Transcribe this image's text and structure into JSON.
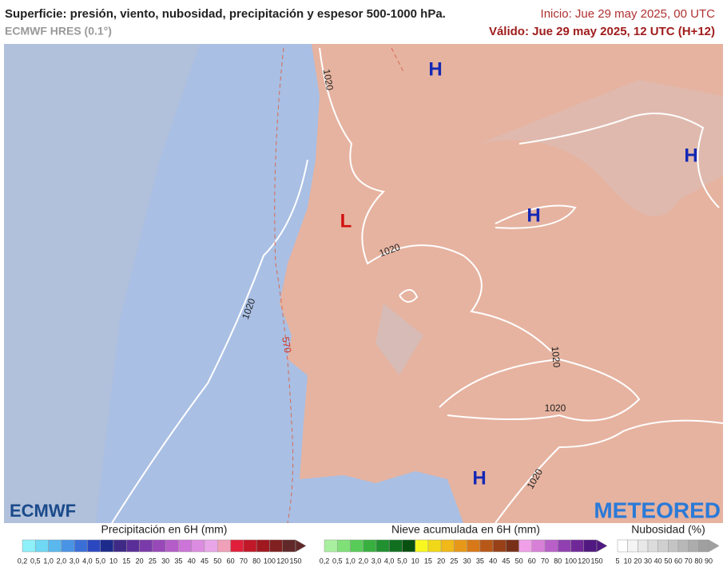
{
  "header": {
    "title": "Superficie: presión, viento, nubosidad, precipitación y espesor 500-1000 hPa.",
    "model": "ECMWF HRES (0.1°)",
    "init": "Inicio: Jue 29 may 2025, 00 UTC",
    "valid": "Válido: Jue 29 may 2025, 12 UTC (H+12)"
  },
  "map": {
    "pressure_centers": [
      "H",
      "H",
      "H",
      "H",
      "L"
    ],
    "isobar_labels": [
      "1020",
      "1020",
      "1020",
      "1020",
      "1020",
      "1020"
    ],
    "thickness_label": "570"
  },
  "logos": {
    "left": "ECMWF",
    "right": "METEORED"
  },
  "legends": [
    {
      "title": "Precipitación en 6H (mm)",
      "labels": [
        "0,2",
        "0,5",
        "1,0",
        "2,0",
        "3,0",
        "4,0",
        "5,0",
        "10",
        "15",
        "20",
        "25",
        "30",
        "35",
        "40",
        "45",
        "50",
        "60",
        "70",
        "80",
        "100",
        "120",
        "150"
      ],
      "colors": [
        "#8ef0f8",
        "#6fd8f4",
        "#5ab8ee",
        "#4a94e6",
        "#3b6fd8",
        "#2c48c0",
        "#1c2a8c",
        "#3e2a86",
        "#5a2e98",
        "#7a3aaa",
        "#9848b8",
        "#b45cc8",
        "#cc74d8",
        "#dc8ce0",
        "#e8a6e8",
        "#f0a0b8",
        "#e0203a",
        "#c01828",
        "#a01820",
        "#802020",
        "#602828"
      ]
    },
    {
      "title": "Nieve acumulada en 6H (mm)",
      "labels": [
        "0,2",
        "0,5",
        "1,0",
        "2,0",
        "3,0",
        "4,0",
        "5,0",
        "10",
        "15",
        "20",
        "25",
        "30",
        "35",
        "40",
        "45",
        "50",
        "60",
        "70",
        "80",
        "100",
        "120",
        "150"
      ],
      "colors": [
        "#a8f0a0",
        "#80e078",
        "#58cc58",
        "#38b040",
        "#209030",
        "#107020",
        "#085010",
        "#f8f820",
        "#f0d818",
        "#f0b818",
        "#e89818",
        "#d87818",
        "#b85818",
        "#984018",
        "#783018",
        "#f0a0e8",
        "#d880d8",
        "#b860c8",
        "#9040b0",
        "#702898",
        "#501880"
      ]
    },
    {
      "title": "Nubosidad (%)",
      "labels": [
        "5",
        "10",
        "20",
        "30",
        "40",
        "50",
        "60",
        "70",
        "80",
        "90"
      ],
      "colors": [
        "#ffffff",
        "#f4f4f4",
        "#e8e8e8",
        "#dcdcdc",
        "#d0d0d0",
        "#c4c4c4",
        "#b8b8b8",
        "#acacac",
        "#a0a0a0"
      ]
    }
  ]
}
